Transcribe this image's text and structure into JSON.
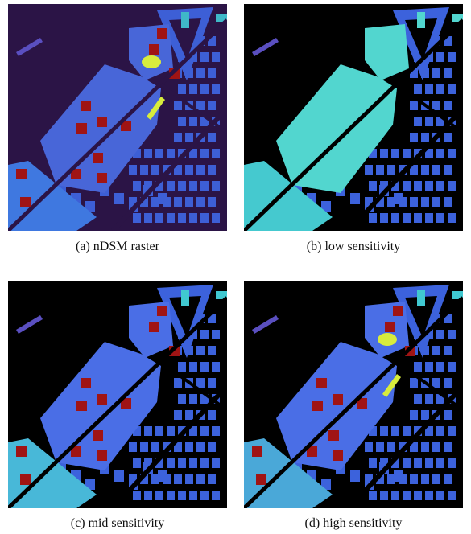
{
  "figure": {
    "panels": [
      {
        "caption": "(a) nDSM raster"
      },
      {
        "caption": "(b) low sensitivity"
      },
      {
        "caption": "(c) mid sensitivity"
      },
      {
        "caption": "(d) high sensitivity"
      }
    ]
  }
}
